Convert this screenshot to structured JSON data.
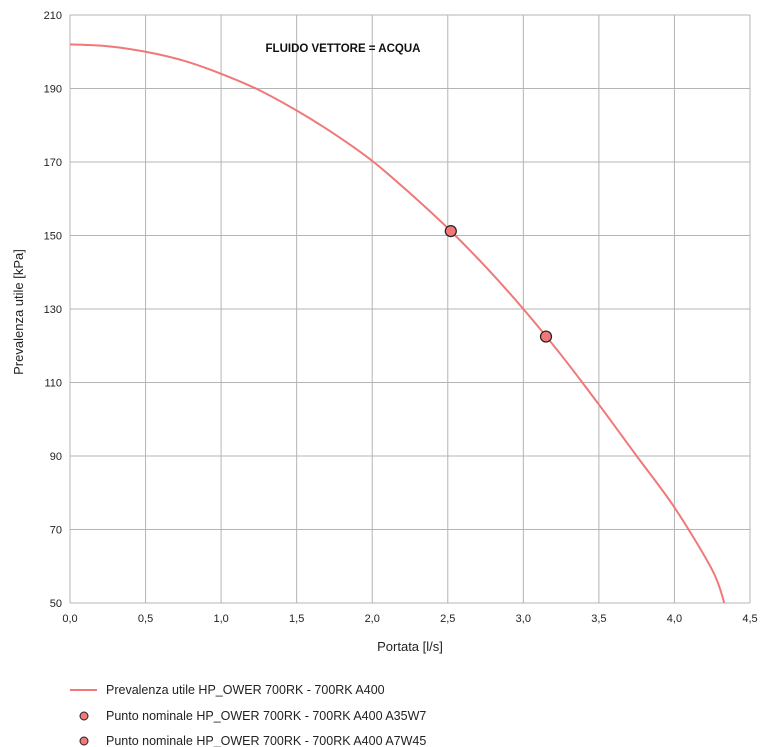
{
  "chart_data": {
    "type": "line",
    "title": "",
    "annotation": "FLUIDO VETTORE = ACQUA",
    "xlabel": "Portata [l/s]",
    "ylabel": "Prevalenza utile [kPa]",
    "xlim": [
      0,
      4.5
    ],
    "ylim": [
      50,
      210
    ],
    "x_ticks": [
      0,
      0.5,
      1,
      1.5,
      2,
      2.5,
      3,
      3.5,
      4,
      4.5
    ],
    "x_tick_labels": [
      "0,0",
      "0,5",
      "1,0",
      "1,5",
      "2,0",
      "2,5",
      "3,0",
      "3,5",
      "4,0",
      "4,5"
    ],
    "y_ticks": [
      50,
      70,
      90,
      110,
      130,
      150,
      170,
      190,
      210
    ],
    "y_tick_labels": [
      "50",
      "70",
      "90",
      "110",
      "130",
      "150",
      "170",
      "190",
      "210"
    ],
    "grid": true,
    "legend_position": "bottom",
    "series": [
      {
        "name": "Prevalenza utile HP_OWER 700RK - 700RK A400",
        "kind": "line",
        "color": "#f07878",
        "x": [
          0,
          0.25,
          0.5,
          0.75,
          1.0,
          1.25,
          1.5,
          1.75,
          2.0,
          2.25,
          2.5,
          2.75,
          3.0,
          3.25,
          3.5,
          3.75,
          4.0,
          4.25,
          4.33
        ],
        "y": [
          202,
          201.5,
          200,
          197.6,
          194,
          189.6,
          184,
          177.6,
          170.3,
          161.5,
          152,
          141.5,
          130,
          117.5,
          104,
          90,
          76,
          59,
          50
        ]
      },
      {
        "name": "Punto nominale HP_OWER 700RK - 700RK A400 A35W7",
        "kind": "point",
        "color": "#f07878",
        "x": [
          2.52
        ],
        "y": [
          151.2
        ]
      },
      {
        "name": "Punto nominale HP_OWER 700RK - 700RK A400 A7W45",
        "kind": "point",
        "color": "#f07878",
        "x": [
          3.15
        ],
        "y": [
          122.5
        ]
      }
    ]
  }
}
